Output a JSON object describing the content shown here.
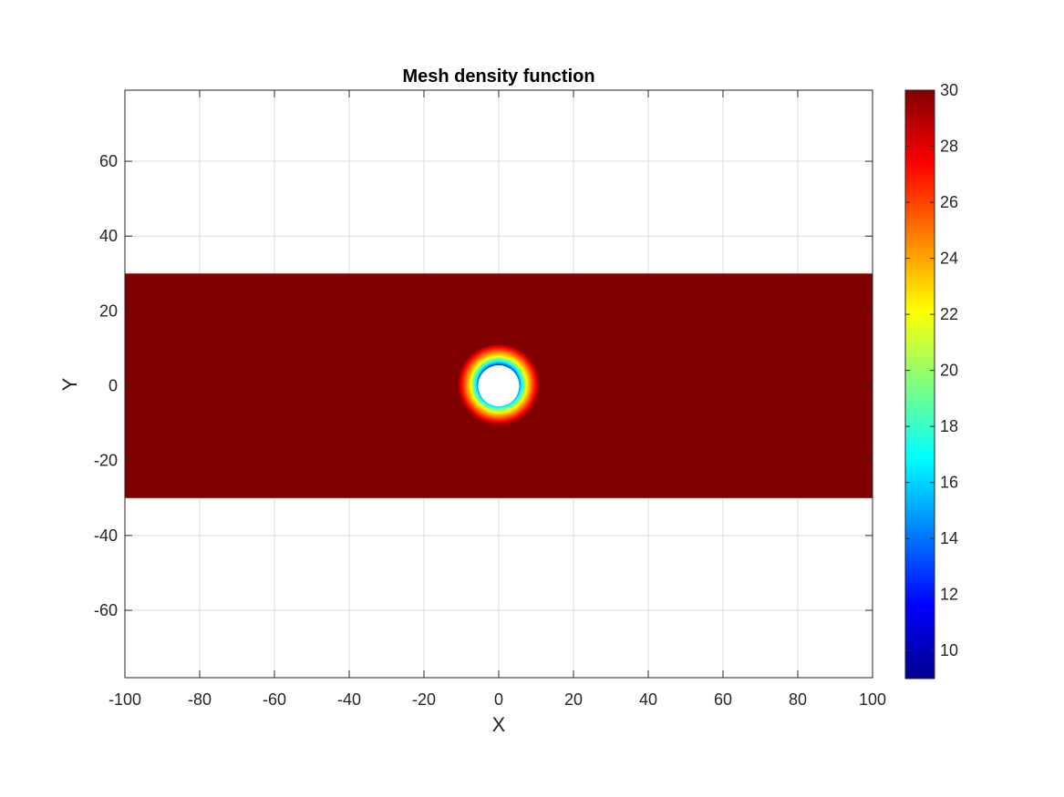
{
  "chart_data": {
    "type": "heatmap",
    "title": "Mesh density function",
    "xlabel": "X",
    "ylabel": "Y",
    "xlim": [
      -100,
      100
    ],
    "ylim": [
      -78,
      79
    ],
    "xticks": [
      -100,
      -80,
      -60,
      -40,
      -20,
      0,
      20,
      40,
      60,
      80,
      100
    ],
    "yticks": [
      -60,
      -40,
      -20,
      0,
      20,
      40,
      60
    ],
    "grid": true,
    "colormap": "jet",
    "clim": [
      9,
      30
    ],
    "colorbar_ticks": [
      10,
      12,
      14,
      16,
      18,
      20,
      22,
      24,
      26,
      28,
      30
    ],
    "domain": {
      "x_range": [
        -100,
        100
      ],
      "y_range": [
        -30,
        30
      ]
    },
    "hole": {
      "center": [
        0,
        0
      ],
      "radius": 5.5
    },
    "field": {
      "min_value": 9,
      "max_value": 30,
      "transition_outer_radius": 11,
      "background_value": 30
    }
  }
}
